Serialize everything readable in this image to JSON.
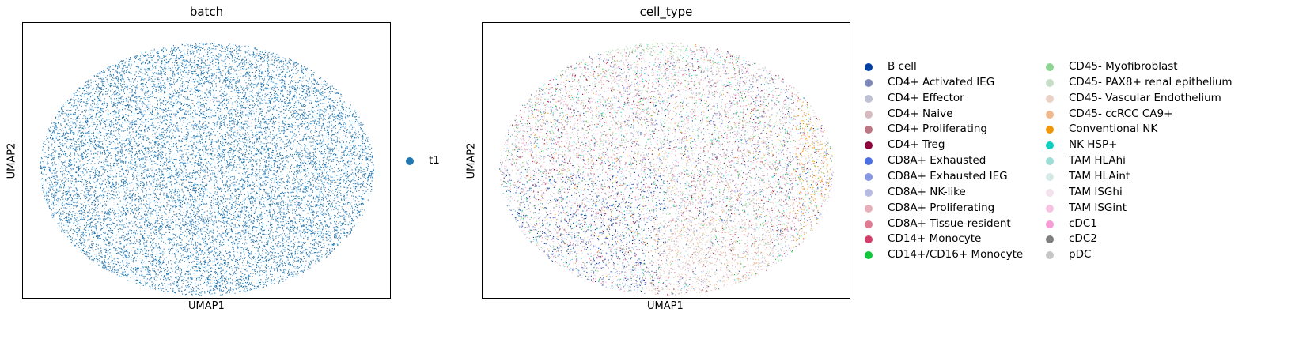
{
  "chart_data": [
    {
      "type": "scatter",
      "title": "batch",
      "xlabel": "UMAP1",
      "ylabel": "UMAP2",
      "grid": false,
      "legend_position": "right",
      "legend": [
        {
          "label": "t1",
          "color": "#1f77b4"
        }
      ]
    },
    {
      "type": "scatter",
      "title": "cell_type",
      "xlabel": "UMAP1",
      "ylabel": "UMAP2",
      "grid": false,
      "legend_position": "right",
      "legend": [
        {
          "label": "B cell",
          "color": "#023fa5"
        },
        {
          "label": "CD4+ Activated IEG",
          "color": "#7d87b9"
        },
        {
          "label": "CD4+ Effector",
          "color": "#bec1d4"
        },
        {
          "label": "CD4+ Naive",
          "color": "#d6bcc0"
        },
        {
          "label": "CD4+ Proliferating",
          "color": "#bb7784"
        },
        {
          "label": "CD4+ Treg",
          "color": "#8e063b"
        },
        {
          "label": "CD8A+ Exhausted",
          "color": "#4a6fe3"
        },
        {
          "label": "CD8A+ Exhausted IEG",
          "color": "#8595e1"
        },
        {
          "label": "CD8A+ NK-like",
          "color": "#b5bbe3"
        },
        {
          "label": "CD8A+ Proliferating",
          "color": "#e6afb9"
        },
        {
          "label": "CD8A+ Tissue-resident",
          "color": "#e07b91"
        },
        {
          "label": "CD14+ Monocyte",
          "color": "#d33f6a"
        },
        {
          "label": "CD14+/CD16+ Monocyte",
          "color": "#11c638"
        },
        {
          "label": "CD45- Myofibroblast",
          "color": "#8dd593"
        },
        {
          "label": "CD45- PAX8+ renal epithelium",
          "color": "#c6dec7"
        },
        {
          "label": "CD45- Vascular Endothelium",
          "color": "#ead3c6"
        },
        {
          "label": "CD45- ccRCC CA9+",
          "color": "#f0b98d"
        },
        {
          "label": "Conventional NK",
          "color": "#ef9708"
        },
        {
          "label": "NK HSP+",
          "color": "#0fcfc0"
        },
        {
          "label": "TAM HLAhi",
          "color": "#9cded6"
        },
        {
          "label": "TAM HLAint",
          "color": "#d5eae7"
        },
        {
          "label": "TAM ISGhi",
          "color": "#f3e1eb"
        },
        {
          "label": "TAM ISGint",
          "color": "#f6c4e1"
        },
        {
          "label": "cDC1",
          "color": "#f79cd4"
        },
        {
          "label": "cDC2",
          "color": "#7f7f7f"
        },
        {
          "label": "pDC",
          "color": "#c7c7c7"
        }
      ]
    }
  ]
}
